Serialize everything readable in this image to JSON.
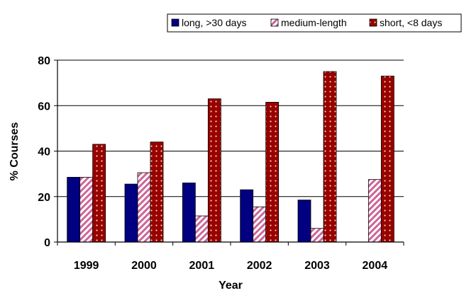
{
  "chart_data": {
    "type": "bar",
    "title": "",
    "xlabel": "Year",
    "ylabel": "% Courses",
    "ylim": [
      0,
      80
    ],
    "yticks": [
      0,
      20,
      40,
      60,
      80
    ],
    "grid": true,
    "legend_position": "top-right",
    "categories": [
      "1999",
      "2000",
      "2001",
      "2002",
      "2003",
      "2004"
    ],
    "series": [
      {
        "name": "long, >30 days",
        "values": [
          28.5,
          25.5,
          26,
          23,
          18.5,
          0
        ],
        "color": "#000080",
        "pattern": "solid"
      },
      {
        "name": "medium-length",
        "values": [
          28.5,
          30.5,
          11.5,
          15.5,
          6,
          27.5
        ],
        "color": "#CC6699",
        "pattern": "diagonal-stripes"
      },
      {
        "name": "short, <8 days",
        "values": [
          43,
          44,
          63,
          61.5,
          75,
          73
        ],
        "color": "#990000",
        "pattern": "dotted"
      }
    ]
  }
}
